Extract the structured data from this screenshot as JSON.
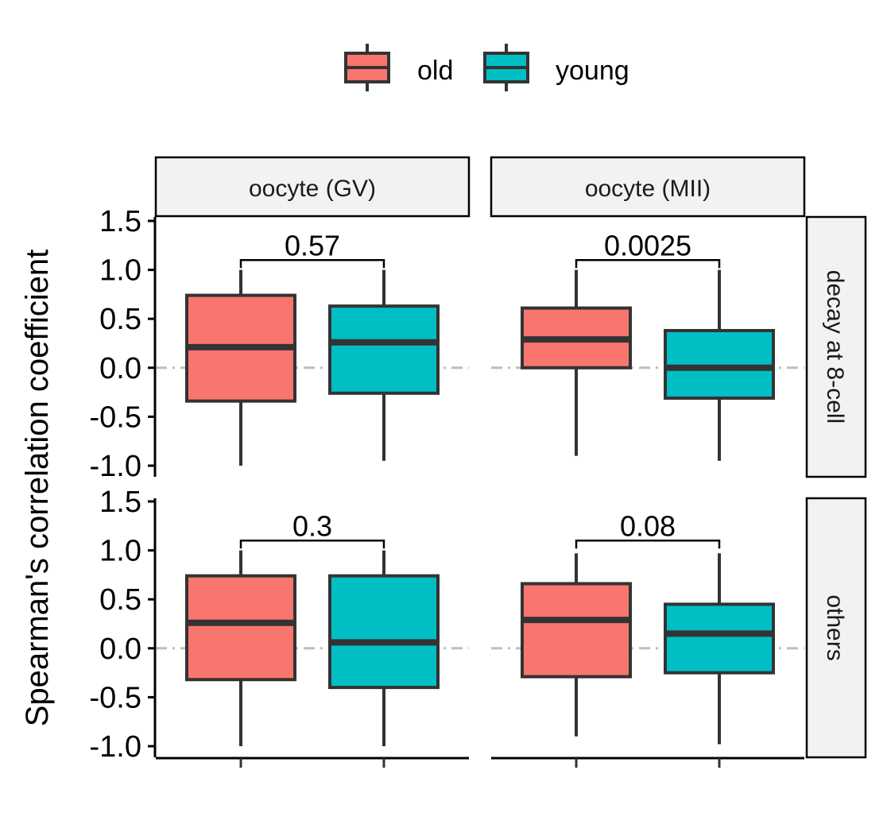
{
  "chart_data": {
    "type": "box",
    "ylabel": "Spearman's correlation coefficient",
    "xlabel": "",
    "ylim": [
      -1.0,
      1.5
    ],
    "yticks": [
      -1.0,
      -0.5,
      0.0,
      0.5,
      1.0,
      1.5
    ],
    "ytick_labels": [
      "-1.0",
      "-0.5",
      "0.0",
      "0.5",
      "1.0",
      "1.5"
    ],
    "reference_line_y": 0.0,
    "legend": {
      "placement": "top",
      "entries": [
        {
          "name": "old",
          "color": "#F8766D"
        },
        {
          "name": "young",
          "color": "#00BFC4"
        }
      ]
    },
    "columns": [
      "oocyte (GV)",
      "oocyte (MII)"
    ],
    "rows": [
      "decay at 8-cell",
      "others"
    ],
    "panels": [
      {
        "row": "decay at 8-cell",
        "column": "oocyte (GV)",
        "pvalue": "0.57",
        "boxes": [
          {
            "group": "old",
            "min": -1.0,
            "q1": -0.34,
            "median": 0.21,
            "q3": 0.74,
            "max": 1.0
          },
          {
            "group": "young",
            "min": -0.95,
            "q1": -0.26,
            "median": 0.26,
            "q3": 0.63,
            "max": 1.0
          }
        ]
      },
      {
        "row": "decay at 8-cell",
        "column": "oocyte (MII)",
        "pvalue": "0.0025",
        "boxes": [
          {
            "group": "old",
            "min": -0.9,
            "q1": 0.0,
            "median": 0.29,
            "q3": 0.61,
            "max": 1.0
          },
          {
            "group": "young",
            "min": -0.95,
            "q1": -0.31,
            "median": 0.0,
            "q3": 0.38,
            "max": 1.0
          }
        ]
      },
      {
        "row": "others",
        "column": "oocyte (GV)",
        "pvalue": "0.3",
        "boxes": [
          {
            "group": "old",
            "min": -1.0,
            "q1": -0.32,
            "median": 0.26,
            "q3": 0.74,
            "max": 1.0
          },
          {
            "group": "young",
            "min": -1.0,
            "q1": -0.4,
            "median": 0.06,
            "q3": 0.74,
            "max": 1.0
          }
        ]
      },
      {
        "row": "others",
        "column": "oocyte (MII)",
        "pvalue": "0.08",
        "boxes": [
          {
            "group": "old",
            "min": -0.9,
            "q1": -0.29,
            "median": 0.29,
            "q3": 0.66,
            "max": 0.97
          },
          {
            "group": "young",
            "min": -0.98,
            "q1": -0.25,
            "median": 0.15,
            "q3": 0.45,
            "max": 0.97
          }
        ]
      }
    ],
    "bracket_y": 1.1
  }
}
